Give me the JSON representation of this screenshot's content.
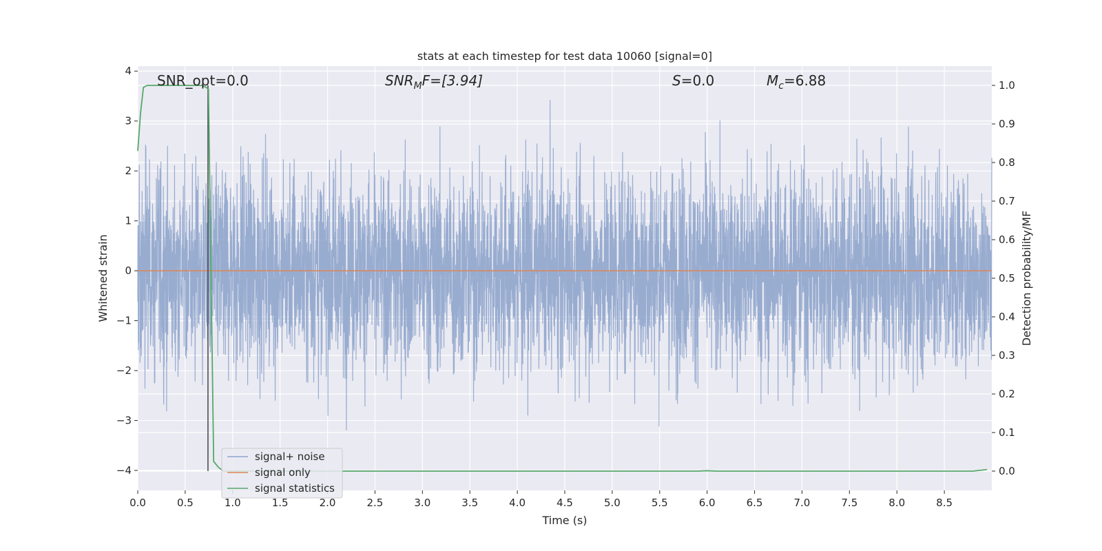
{
  "chart_data": {
    "type": "line",
    "title": "stats at each timestep for test data 10060 [signal=0]",
    "xlabel": "Time (s)",
    "ylabel": "Whitened strain",
    "y2label": "Detection probability/MF",
    "xlim": [
      0.0,
      9.0
    ],
    "ylim": [
      -4.4,
      4.1
    ],
    "y2lim": [
      -0.05,
      1.05
    ],
    "xticks": [
      "0.0",
      "0.5",
      "1.0",
      "1.5",
      "2.0",
      "2.5",
      "3.0",
      "3.5",
      "4.0",
      "4.5",
      "5.0",
      "5.5",
      "6.0",
      "6.5",
      "7.0",
      "7.5",
      "8.0",
      "8.5"
    ],
    "yticks": [
      "−4",
      "−3",
      "−2",
      "−1",
      "0",
      "1",
      "2",
      "3",
      "4"
    ],
    "y2ticks": [
      "0.0",
      "0.1",
      "0.2",
      "0.3",
      "0.4",
      "0.5",
      "0.6",
      "0.7",
      "0.8",
      "0.9",
      "1.0"
    ],
    "grid": true,
    "legend_position": "lower-left",
    "annotations": {
      "snr_opt": "SNR_opt=0.0",
      "snr_mf_sym": "SNR",
      "snr_mf_sub": "M",
      "snr_mf_rest": "F=[3.94]",
      "s_sym": "S",
      "s_rest": "=0.0",
      "mc_sym": "M",
      "mc_sub": "c",
      "mc_rest": "=6.88"
    },
    "series": [
      {
        "name": "signal+ noise",
        "color": "#8fa5cc",
        "description_values": "whitened noise, roughly Gaussian",
        "std": 1.0,
        "range": [
          -3.6,
          3.75
        ],
        "n_points": 4500
      },
      {
        "name": "signal only",
        "color": "#dd8452",
        "x": [
          0.0,
          9.0
        ],
        "y": [
          0.0,
          0.0
        ]
      },
      {
        "name": "signal statistics",
        "color": "#55a868",
        "axis": "right",
        "x": [
          0.0,
          0.03,
          0.06,
          0.1,
          0.2,
          0.3,
          0.4,
          0.5,
          0.6,
          0.68,
          0.72,
          0.745,
          0.77,
          0.8,
          0.85,
          0.9,
          1.0,
          2.0,
          4.0,
          5.9,
          6.0,
          6.1,
          8.0,
          8.8,
          8.95
        ],
        "y": [
          0.83,
          0.93,
          0.995,
          1.0,
          1.0,
          1.0,
          1.0,
          1.0,
          1.0,
          1.0,
          0.995,
          0.99,
          0.55,
          0.025,
          0.01,
          0.0,
          0.0,
          0.0,
          0.0,
          0.0,
          0.001,
          0.0,
          0.0,
          0.0,
          0.004
        ]
      }
    ],
    "marker_line": {
      "x": 0.74,
      "color": "#444444"
    }
  }
}
